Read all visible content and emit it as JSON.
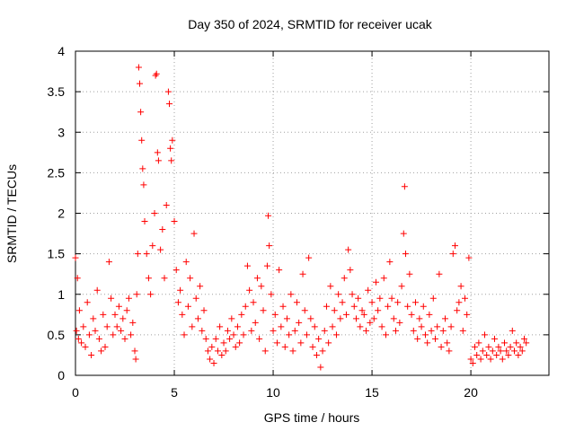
{
  "chart_data": {
    "type": "scatter",
    "title": "Day 350 of 2024, SRMTID for receiver ucak",
    "xlabel": "GPS time / hours",
    "ylabel": "SRMTID / TECUs",
    "xlim": [
      0,
      23.95
    ],
    "ylim": [
      0,
      4
    ],
    "x_ticks": [
      0,
      5,
      10,
      15,
      20
    ],
    "x_tick_labels": [
      "0",
      "5",
      "10",
      "15",
      "20"
    ],
    "y_ticks": [
      0,
      0.5,
      1,
      1.5,
      2,
      2.5,
      3,
      3.5,
      4
    ],
    "y_tick_labels": [
      "0",
      "0.5",
      "1",
      "1.5",
      "2",
      "2.5",
      "3",
      "3.5",
      "4"
    ],
    "grid": true,
    "marker": "plus",
    "color": "#ff0000",
    "series": [
      {
        "name": "SRMTID",
        "points": [
          [
            0.0,
            1.45
          ],
          [
            0.05,
            0.55
          ],
          [
            0.1,
            1.2
          ],
          [
            0.15,
            0.45
          ],
          [
            0.2,
            0.8
          ],
          [
            0.3,
            0.4
          ],
          [
            0.4,
            0.6
          ],
          [
            0.5,
            0.35
          ],
          [
            0.6,
            0.9
          ],
          [
            0.7,
            0.5
          ],
          [
            0.8,
            0.25
          ],
          [
            0.9,
            0.7
          ],
          [
            1.0,
            0.55
          ],
          [
            1.1,
            1.05
          ],
          [
            1.2,
            0.45
          ],
          [
            1.3,
            0.3
          ],
          [
            1.4,
            0.75
          ],
          [
            1.5,
            0.35
          ],
          [
            1.6,
            0.6
          ],
          [
            1.7,
            1.4
          ],
          [
            1.8,
            0.95
          ],
          [
            1.9,
            0.5
          ],
          [
            2.0,
            0.75
          ],
          [
            2.1,
            0.6
          ],
          [
            2.2,
            0.85
          ],
          [
            2.3,
            0.55
          ],
          [
            2.4,
            0.7
          ],
          [
            2.5,
            0.45
          ],
          [
            2.6,
            0.8
          ],
          [
            2.7,
            0.95
          ],
          [
            2.8,
            0.5
          ],
          [
            2.9,
            0.65
          ],
          [
            3.0,
            0.3
          ],
          [
            3.05,
            0.2
          ],
          [
            3.1,
            1.0
          ],
          [
            3.15,
            1.5
          ],
          [
            3.2,
            3.8
          ],
          [
            3.25,
            3.6
          ],
          [
            3.3,
            3.25
          ],
          [
            3.35,
            2.9
          ],
          [
            3.4,
            2.55
          ],
          [
            3.45,
            2.35
          ],
          [
            3.5,
            1.9
          ],
          [
            3.6,
            1.5
          ],
          [
            3.7,
            1.2
          ],
          [
            3.8,
            1.0
          ],
          [
            3.9,
            1.6
          ],
          [
            4.0,
            2.0
          ],
          [
            4.05,
            3.7
          ],
          [
            4.1,
            3.72
          ],
          [
            4.15,
            2.75
          ],
          [
            4.2,
            2.65
          ],
          [
            4.3,
            1.55
          ],
          [
            4.4,
            1.8
          ],
          [
            4.5,
            1.2
          ],
          [
            4.6,
            2.1
          ],
          [
            4.7,
            3.5
          ],
          [
            4.75,
            3.35
          ],
          [
            4.8,
            2.8
          ],
          [
            4.85,
            2.65
          ],
          [
            4.9,
            2.9
          ],
          [
            5.0,
            1.9
          ],
          [
            5.1,
            1.3
          ],
          [
            5.2,
            0.9
          ],
          [
            5.3,
            1.05
          ],
          [
            5.4,
            0.75
          ],
          [
            5.5,
            0.5
          ],
          [
            5.6,
            1.4
          ],
          [
            5.7,
            0.85
          ],
          [
            5.8,
            1.2
          ],
          [
            5.9,
            0.6
          ],
          [
            6.0,
            1.75
          ],
          [
            6.1,
            0.95
          ],
          [
            6.2,
            0.7
          ],
          [
            6.3,
            1.1
          ],
          [
            6.4,
            0.55
          ],
          [
            6.5,
            0.8
          ],
          [
            6.6,
            0.45
          ],
          [
            6.7,
            0.3
          ],
          [
            6.8,
            0.2
          ],
          [
            6.9,
            0.35
          ],
          [
            7.0,
            0.15
          ],
          [
            7.1,
            0.45
          ],
          [
            7.2,
            0.3
          ],
          [
            7.3,
            0.6
          ],
          [
            7.4,
            0.25
          ],
          [
            7.5,
            0.4
          ],
          [
            7.6,
            0.3
          ],
          [
            7.7,
            0.55
          ],
          [
            7.8,
            0.45
          ],
          [
            7.9,
            0.7
          ],
          [
            8.0,
            0.5
          ],
          [
            8.1,
            0.35
          ],
          [
            8.2,
            0.6
          ],
          [
            8.3,
            0.4
          ],
          [
            8.4,
            0.75
          ],
          [
            8.5,
            0.5
          ],
          [
            8.6,
            0.85
          ],
          [
            8.7,
            1.35
          ],
          [
            8.8,
            1.05
          ],
          [
            8.9,
            0.55
          ],
          [
            9.0,
            0.9
          ],
          [
            9.1,
            0.65
          ],
          [
            9.2,
            1.2
          ],
          [
            9.3,
            0.45
          ],
          [
            9.4,
            1.1
          ],
          [
            9.5,
            0.8
          ],
          [
            9.6,
            0.3
          ],
          [
            9.7,
            1.35
          ],
          [
            9.75,
            1.97
          ],
          [
            9.8,
            1.6
          ],
          [
            9.9,
            1.0
          ],
          [
            10.0,
            0.55
          ],
          [
            10.1,
            0.75
          ],
          [
            10.2,
            0.4
          ],
          [
            10.3,
            1.3
          ],
          [
            10.4,
            0.6
          ],
          [
            10.5,
            0.85
          ],
          [
            10.6,
            0.35
          ],
          [
            10.7,
            0.7
          ],
          [
            10.8,
            0.5
          ],
          [
            10.9,
            1.0
          ],
          [
            11.0,
            0.3
          ],
          [
            11.1,
            0.55
          ],
          [
            11.2,
            0.9
          ],
          [
            11.3,
            0.65
          ],
          [
            11.4,
            0.4
          ],
          [
            11.5,
            1.25
          ],
          [
            11.6,
            0.8
          ],
          [
            11.7,
            0.5
          ],
          [
            11.8,
            1.45
          ],
          [
            11.9,
            0.7
          ],
          [
            12.0,
            0.35
          ],
          [
            12.1,
            0.6
          ],
          [
            12.2,
            0.25
          ],
          [
            12.3,
            0.45
          ],
          [
            12.4,
            0.1
          ],
          [
            12.5,
            0.3
          ],
          [
            12.6,
            0.55
          ],
          [
            12.7,
            0.85
          ],
          [
            12.8,
            0.4
          ],
          [
            12.9,
            1.1
          ],
          [
            13.0,
            0.6
          ],
          [
            13.1,
            0.8
          ],
          [
            13.2,
            0.5
          ],
          [
            13.3,
            1.0
          ],
          [
            13.4,
            0.7
          ],
          [
            13.5,
            0.9
          ],
          [
            13.6,
            1.2
          ],
          [
            13.7,
            0.75
          ],
          [
            13.8,
            1.55
          ],
          [
            13.9,
            1.3
          ],
          [
            14.0,
            1.0
          ],
          [
            14.1,
            0.85
          ],
          [
            14.2,
            0.7
          ],
          [
            14.3,
            0.95
          ],
          [
            14.4,
            0.6
          ],
          [
            14.5,
            0.8
          ],
          [
            14.6,
            0.75
          ],
          [
            14.7,
            0.55
          ],
          [
            14.8,
            1.05
          ],
          [
            14.9,
            0.65
          ],
          [
            15.0,
            0.9
          ],
          [
            15.1,
            0.7
          ],
          [
            15.2,
            1.15
          ],
          [
            15.3,
            0.8
          ],
          [
            15.4,
            0.95
          ],
          [
            15.5,
            0.6
          ],
          [
            15.6,
            1.2
          ],
          [
            15.7,
            0.5
          ],
          [
            15.8,
            0.85
          ],
          [
            15.9,
            1.4
          ],
          [
            16.0,
            0.95
          ],
          [
            16.1,
            0.7
          ],
          [
            16.2,
            0.55
          ],
          [
            16.3,
            0.9
          ],
          [
            16.4,
            0.65
          ],
          [
            16.5,
            1.1
          ],
          [
            16.6,
            1.75
          ],
          [
            16.65,
            2.33
          ],
          [
            16.7,
            1.5
          ],
          [
            16.8,
            0.85
          ],
          [
            16.9,
            1.25
          ],
          [
            17.0,
            0.75
          ],
          [
            17.1,
            0.55
          ],
          [
            17.2,
            0.9
          ],
          [
            17.3,
            0.45
          ],
          [
            17.4,
            0.7
          ],
          [
            17.5,
            0.6
          ],
          [
            17.6,
            0.85
          ],
          [
            17.7,
            0.5
          ],
          [
            17.8,
            0.4
          ],
          [
            17.9,
            0.75
          ],
          [
            18.0,
            0.55
          ],
          [
            18.1,
            0.95
          ],
          [
            18.2,
            0.45
          ],
          [
            18.3,
            0.6
          ],
          [
            18.4,
            1.25
          ],
          [
            18.5,
            0.35
          ],
          [
            18.6,
            0.55
          ],
          [
            18.7,
            0.7
          ],
          [
            18.8,
            0.4
          ],
          [
            18.9,
            0.3
          ],
          [
            19.0,
            0.6
          ],
          [
            19.1,
            1.5
          ],
          [
            19.2,
            1.6
          ],
          [
            19.3,
            0.8
          ],
          [
            19.4,
            0.9
          ],
          [
            19.5,
            1.1
          ],
          [
            19.6,
            0.55
          ],
          [
            19.7,
            0.95
          ],
          [
            19.8,
            0.75
          ],
          [
            19.9,
            1.45
          ],
          [
            20.0,
            0.2
          ],
          [
            20.1,
            0.15
          ],
          [
            20.2,
            0.35
          ],
          [
            20.3,
            0.25
          ],
          [
            20.4,
            0.4
          ],
          [
            20.5,
            0.2
          ],
          [
            20.6,
            0.3
          ],
          [
            20.7,
            0.5
          ],
          [
            20.8,
            0.25
          ],
          [
            20.9,
            0.35
          ],
          [
            21.0,
            0.2
          ],
          [
            21.1,
            0.3
          ],
          [
            21.2,
            0.45
          ],
          [
            21.3,
            0.25
          ],
          [
            21.4,
            0.35
          ],
          [
            21.5,
            0.3
          ],
          [
            21.6,
            0.2
          ],
          [
            21.7,
            0.4
          ],
          [
            21.8,
            0.3
          ],
          [
            21.9,
            0.25
          ],
          [
            22.0,
            0.35
          ],
          [
            22.1,
            0.55
          ],
          [
            22.2,
            0.3
          ],
          [
            22.3,
            0.4
          ],
          [
            22.4,
            0.25
          ],
          [
            22.5,
            0.35
          ],
          [
            22.6,
            0.3
          ],
          [
            22.7,
            0.45
          ],
          [
            22.8,
            0.4
          ]
        ]
      }
    ]
  }
}
